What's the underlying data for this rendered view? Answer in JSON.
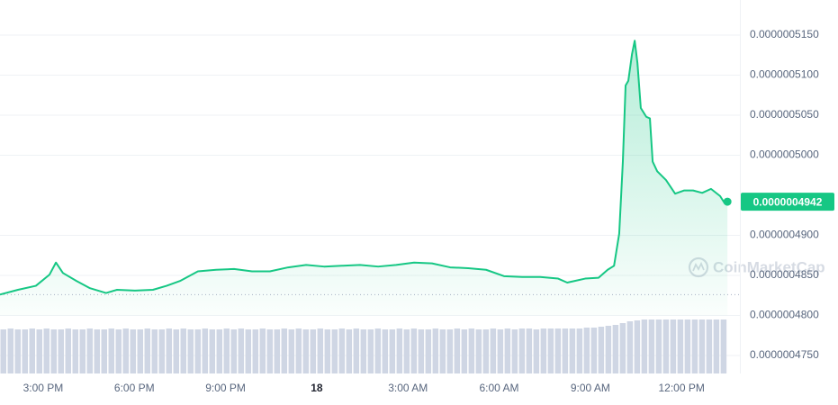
{
  "chart_data": {
    "type": "line",
    "color": "#16c784",
    "x": [
      13.58,
      14.17,
      14.76,
      15.21,
      15.42,
      15.65,
      16.1,
      16.54,
      17.07,
      17.43,
      18.02,
      18.61,
      19.06,
      19.5,
      20.09,
      20.69,
      21.28,
      21.87,
      22.46,
      23.06,
      23.65,
      24.24,
      24.83,
      25.42,
      26.02,
      26.61,
      27.2,
      27.79,
      28.39,
      28.98,
      29.57,
      30.16,
      30.76,
      31.35,
      31.94,
      32.24,
      32.83,
      33.27,
      33.57,
      33.78,
      33.95,
      34.07,
      34.16,
      34.25,
      34.37,
      34.46,
      34.55,
      34.66,
      34.84,
      34.96,
      35.05,
      35.2,
      35.49,
      35.79,
      36.08,
      36.38,
      36.68,
      36.97,
      37.27,
      37.42,
      37.51
    ],
    "values": [
      4.826e-07,
      4.832e-07,
      4.837e-07,
      4.851e-07,
      4.866e-07,
      4.853e-07,
      4.843e-07,
      4.834e-07,
      4.828e-07,
      4.832e-07,
      4.831e-07,
      4.832e-07,
      4.837e-07,
      4.843e-07,
      4.855e-07,
      4.857e-07,
      4.858e-07,
      4.855e-07,
      4.855e-07,
      4.86e-07,
      4.863e-07,
      4.861e-07,
      4.862e-07,
      4.863e-07,
      4.861e-07,
      4.863e-07,
      4.866e-07,
      4.865e-07,
      4.86e-07,
      4.859e-07,
      4.857e-07,
      4.849e-07,
      4.848e-07,
      4.848e-07,
      4.846e-07,
      4.841e-07,
      4.846e-07,
      4.847e-07,
      4.857e-07,
      4.862e-07,
      4.902e-07,
      4.992e-07,
      5.087e-07,
      5.093e-07,
      5.126e-07,
      5.143e-07,
      5.115e-07,
      5.059e-07,
      5.048e-07,
      5.046e-07,
      4.992e-07,
      4.98e-07,
      4.969e-07,
      4.952e-07,
      4.956e-07,
      4.956e-07,
      4.953e-07,
      4.958e-07,
      4.949e-07,
      4.94e-07,
      4.942e-07
    ],
    "xlim": [
      13.58,
      37.92
    ],
    "ylim": [
      4.7275e-07,
      5.1938e-07
    ],
    "xticks": [
      {
        "value": 15,
        "label": "3:00 PM"
      },
      {
        "value": 18,
        "label": "6:00 PM"
      },
      {
        "value": 21,
        "label": "9:00 PM"
      },
      {
        "value": 24,
        "label": "18",
        "bold": true
      },
      {
        "value": 27,
        "label": "3:00 AM"
      },
      {
        "value": 30,
        "label": "6:00 AM"
      },
      {
        "value": 33,
        "label": "9:00 AM"
      },
      {
        "value": 36,
        "label": "12:00 PM"
      }
    ],
    "yticks": [
      {
        "value": 5.15e-07,
        "label": "0.0000005150"
      },
      {
        "value": 5.1e-07,
        "label": "0.0000005100"
      },
      {
        "value": 5.05e-07,
        "label": "0.0000005050"
      },
      {
        "value": 5e-07,
        "label": "0.0000005000"
      },
      {
        "value": 4.9e-07,
        "label": "0.0000004900"
      },
      {
        "value": 4.85e-07,
        "label": "0.0000004850"
      },
      {
        "value": 4.8e-07,
        "label": "0.0000004800"
      },
      {
        "value": 4.75e-07,
        "label": "0.0000004750"
      }
    ],
    "grid": true,
    "current_price": {
      "value": 4.942e-07,
      "label": "0.0000004942"
    },
    "watermark": "CoinMarketCap",
    "volume": {
      "color": "#cfd6e4",
      "ylim": [
        0,
        100
      ],
      "values": [
        49,
        50,
        49,
        49,
        50,
        49,
        50,
        49,
        49,
        50,
        49,
        49,
        50,
        49,
        49,
        50,
        49,
        50,
        49,
        49,
        50,
        49,
        49,
        50,
        49,
        50,
        49,
        49,
        50,
        49,
        49,
        50,
        49,
        50,
        49,
        49,
        50,
        49,
        49,
        50,
        49,
        50,
        49,
        49,
        50,
        49,
        49,
        50,
        49,
        50,
        49,
        49,
        50,
        49,
        49,
        50,
        49,
        50,
        49,
        49,
        50,
        49,
        49,
        50,
        49,
        50,
        49,
        49,
        50,
        49,
        50,
        49,
        50,
        50,
        49,
        50,
        50,
        50,
        50,
        50,
        50,
        51,
        51,
        52,
        53,
        54,
        56,
        58,
        59,
        60,
        60,
        60,
        60,
        60,
        60,
        60,
        60,
        60,
        60,
        60,
        60
      ]
    }
  }
}
